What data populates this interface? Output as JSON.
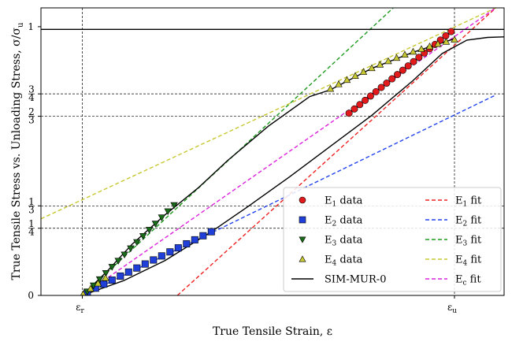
{
  "chart_data": {
    "type": "line",
    "xlabel": "True Tensile Strain, ε",
    "ylabel": "True Tensile Stress vs. Unloading Stress, σ/σ",
    "ylabel_sub": "u",
    "xlim": [
      0,
      1.12
    ],
    "ylim": [
      0,
      1.07
    ],
    "x_ticks": [
      {
        "value": 0.1,
        "label": "ε",
        "sub": "r"
      },
      {
        "value": 1.0,
        "label": "ε",
        "sub": "u"
      }
    ],
    "y_ticks": [
      {
        "value": 0,
        "num": "0",
        "den": ""
      },
      {
        "value": 0.25,
        "num": "1",
        "den": "4"
      },
      {
        "value": 0.3333,
        "num": "1",
        "den": "3"
      },
      {
        "value": 0.6667,
        "num": "2",
        "den": "3"
      },
      {
        "value": 0.75,
        "num": "3",
        "den": "4"
      },
      {
        "value": 1.0,
        "num": "1",
        "den": ""
      }
    ],
    "reference_lines": {
      "horizontal": [
        0.25,
        0.3333,
        0.6667,
        0.75
      ],
      "vertical": [
        0.1,
        1.0
      ]
    },
    "asymptote_value": 0.99,
    "series": [
      {
        "name": "E",
        "sub": "1",
        "suffix": " data",
        "kind": "data",
        "marker": "circle",
        "color": "#e31a1c",
        "x": [
          0.745,
          0.758,
          0.771,
          0.784,
          0.797,
          0.81,
          0.823,
          0.836,
          0.849,
          0.862,
          0.875,
          0.888,
          0.901,
          0.914,
          0.927,
          0.94,
          0.953,
          0.966,
          0.979,
          0.992
        ],
        "y": [
          0.678,
          0.694,
          0.71,
          0.726,
          0.742,
          0.758,
          0.774,
          0.79,
          0.806,
          0.822,
          0.838,
          0.854,
          0.87,
          0.886,
          0.902,
          0.918,
          0.934,
          0.95,
          0.966,
          0.982
        ]
      },
      {
        "name": "E",
        "sub": "2",
        "suffix": " data",
        "kind": "data",
        "marker": "square",
        "color": "#1f3fd8",
        "x": [
          0.112,
          0.132,
          0.152,
          0.172,
          0.192,
          0.212,
          0.232,
          0.252,
          0.272,
          0.292,
          0.312,
          0.332,
          0.352,
          0.372,
          0.392,
          0.412
        ],
        "y": [
          0.012,
          0.027,
          0.042,
          0.057,
          0.072,
          0.087,
          0.102,
          0.117,
          0.132,
          0.147,
          0.162,
          0.177,
          0.192,
          0.207,
          0.222,
          0.237
        ]
      },
      {
        "name": "E",
        "sub": "3",
        "suffix": " data",
        "kind": "data",
        "marker": "triangle-down",
        "color": "#1a6b1a",
        "x": [
          0.112,
          0.127,
          0.142,
          0.157,
          0.172,
          0.187,
          0.202,
          0.217,
          0.232,
          0.247,
          0.262,
          0.277,
          0.292,
          0.307,
          0.322
        ],
        "y": [
          0.014,
          0.037,
          0.06,
          0.083,
          0.106,
          0.129,
          0.152,
          0.175,
          0.198,
          0.221,
          0.244,
          0.267,
          0.29,
          0.313,
          0.336
        ]
      },
      {
        "name": "E",
        "sub": "4",
        "suffix": " data",
        "kind": "data",
        "marker": "triangle-up",
        "color": "#c8c832",
        "x": [
          0.102,
          0.12,
          0.138,
          0.156,
          0.7,
          0.72,
          0.74,
          0.76,
          0.78,
          0.8,
          0.82,
          0.84,
          0.86,
          0.88,
          0.9,
          0.92,
          0.94,
          0.96,
          0.98,
          1.0
        ],
        "y": [
          0.005,
          0.025,
          0.045,
          0.065,
          0.769,
          0.786,
          0.802,
          0.817,
          0.832,
          0.846,
          0.859,
          0.872,
          0.884,
          0.896,
          0.907,
          0.917,
          0.927,
          0.936,
          0.944,
          0.952
        ]
      },
      {
        "name": "SIM-MUR-0",
        "sub": "",
        "suffix": "",
        "kind": "model",
        "color": "#000000"
      },
      {
        "name": "E",
        "sub": "1",
        "suffix": " fit",
        "kind": "fit",
        "color": "#ee2222",
        "line_through": [
          [
            0.33,
            0.0
          ],
          [
            1.1,
            1.07
          ]
        ]
      },
      {
        "name": "E",
        "sub": "2",
        "suffix": " fit",
        "kind": "fit",
        "color": "#2244ee",
        "line_through": [
          [
            0.1,
            0.0
          ],
          [
            1.1,
            0.746
          ]
        ]
      },
      {
        "name": "E",
        "sub": "3",
        "suffix": " fit",
        "kind": "fit",
        "color": "#1f9a1f",
        "line_through": [
          [
            0.1,
            0.0
          ],
          [
            0.852,
            1.07
          ]
        ]
      },
      {
        "name": "E",
        "sub": "4",
        "suffix": " fit",
        "kind": "fit",
        "color": "#c8c832",
        "line_through": [
          [
            0.0,
            0.285
          ],
          [
            1.1,
            1.07
          ]
        ]
      },
      {
        "name": "E",
        "sub": "c",
        "suffix": " fit",
        "kind": "fit",
        "color": "#dd22dd",
        "line_through": [
          [
            0.1,
            0.0
          ],
          [
            1.1,
            1.07
          ]
        ]
      }
    ],
    "legend_position": "lower-right"
  }
}
